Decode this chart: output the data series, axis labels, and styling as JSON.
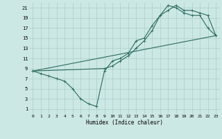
{
  "xlabel": "Humidex (Indice chaleur)",
  "ylabel": "",
  "xlim": [
    -0.5,
    23.5
  ],
  "ylim": [
    0,
    22
  ],
  "xticks": [
    0,
    1,
    2,
    3,
    4,
    5,
    6,
    7,
    8,
    9,
    10,
    11,
    12,
    13,
    14,
    15,
    16,
    17,
    18,
    19,
    20,
    21,
    22,
    23
  ],
  "yticks": [
    1,
    3,
    5,
    7,
    9,
    11,
    13,
    15,
    17,
    19,
    21
  ],
  "background_color": "#cce8e4",
  "grid_color": "#aacccc",
  "line_color": "#2a6b5e",
  "line1_x": [
    0,
    1,
    2,
    3,
    4,
    5,
    6,
    7,
    8,
    9,
    10,
    11,
    12,
    13,
    14,
    15,
    16,
    17,
    18,
    19,
    20,
    21,
    22,
    23
  ],
  "line1_y": [
    8.5,
    8.0,
    7.5,
    7.0,
    6.5,
    5.0,
    3.0,
    2.0,
    1.5,
    8.5,
    10.5,
    11.0,
    12.0,
    14.5,
    15.0,
    17.5,
    19.5,
    21.5,
    21.0,
    20.0,
    19.5,
    19.5,
    17.0,
    15.5
  ],
  "line2_x": [
    0,
    9,
    10,
    11,
    12,
    13,
    14,
    15,
    16,
    17,
    18,
    19,
    20,
    21,
    22,
    23
  ],
  "line2_y": [
    8.5,
    9.0,
    9.5,
    10.5,
    11.5,
    13.0,
    14.5,
    16.5,
    19.5,
    20.5,
    21.5,
    20.5,
    20.5,
    20.0,
    19.5,
    15.5
  ],
  "line3_x": [
    0,
    23
  ],
  "line3_y": [
    8.5,
    15.5
  ]
}
